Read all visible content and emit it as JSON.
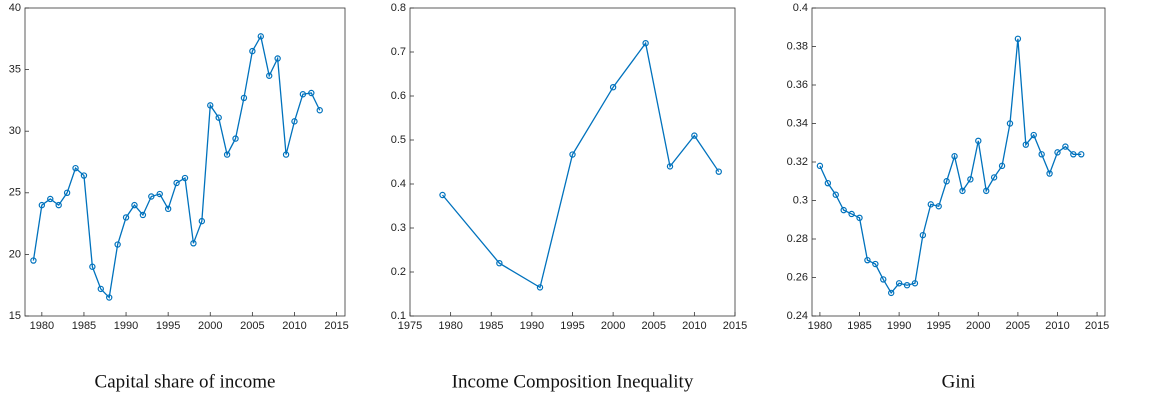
{
  "chart_data": [
    {
      "type": "line",
      "title": "Capital share of income",
      "color": "#0072bd",
      "x": [
        1979,
        1980,
        1981,
        1982,
        1983,
        1984,
        1985,
        1986,
        1987,
        1988,
        1989,
        1990,
        1991,
        1992,
        1993,
        1994,
        1995,
        1996,
        1997,
        1998,
        1999,
        2000,
        2001,
        2002,
        2003,
        2004,
        2005,
        2006,
        2007,
        2008,
        2009,
        2010,
        2011,
        2012,
        2013
      ],
      "values": [
        19.5,
        24.0,
        24.5,
        24.0,
        25.0,
        27.0,
        26.4,
        19.0,
        17.2,
        16.5,
        20.8,
        23.0,
        24.0,
        23.2,
        24.7,
        24.9,
        23.7,
        25.8,
        26.2,
        20.9,
        22.7,
        32.1,
        31.1,
        28.1,
        29.4,
        32.7,
        36.5,
        37.7,
        34.5,
        35.9,
        28.1,
        30.8,
        33.0,
        33.1,
        31.7
      ],
      "xlim": [
        1978,
        2016
      ],
      "ylim": [
        15,
        40
      ],
      "xticks": [
        1980,
        1985,
        1990,
        1995,
        2000,
        2005,
        2010,
        2015
      ],
      "yticks": [
        15,
        20,
        25,
        30,
        35,
        40
      ]
    },
    {
      "type": "line",
      "title": "Income Composition Inequality",
      "color": "#0072bd",
      "x": [
        1979,
        1986,
        1991,
        1995,
        2000,
        2004,
        2007,
        2010,
        2013
      ],
      "values": [
        0.375,
        0.22,
        0.165,
        0.467,
        0.62,
        0.72,
        0.44,
        0.51,
        0.428
      ],
      "xlim": [
        1975,
        2015
      ],
      "ylim": [
        0.1,
        0.8
      ],
      "xticks": [
        1975,
        1980,
        1985,
        1990,
        1995,
        2000,
        2005,
        2010,
        2015
      ],
      "yticks": [
        0.1,
        0.2,
        0.3,
        0.4,
        0.5,
        0.6,
        0.7,
        0.8
      ]
    },
    {
      "type": "line",
      "title": "Gini",
      "color": "#0072bd",
      "x": [
        1980,
        1981,
        1982,
        1983,
        1984,
        1985,
        1986,
        1987,
        1988,
        1989,
        1990,
        1991,
        1992,
        1993,
        1994,
        1995,
        1996,
        1997,
        1998,
        1999,
        2000,
        2001,
        2002,
        2003,
        2004,
        2005,
        2006,
        2007,
        2008,
        2009,
        2010,
        2011,
        2012,
        2013
      ],
      "values": [
        0.318,
        0.309,
        0.303,
        0.295,
        0.293,
        0.291,
        0.269,
        0.267,
        0.259,
        0.252,
        0.257,
        0.256,
        0.257,
        0.282,
        0.298,
        0.297,
        0.31,
        0.323,
        0.305,
        0.311,
        0.331,
        0.305,
        0.312,
        0.318,
        0.34,
        0.384,
        0.329,
        0.334,
        0.324,
        0.314,
        0.325,
        0.328,
        0.324,
        0.324
      ],
      "xlim": [
        1979,
        2016
      ],
      "ylim": [
        0.24,
        0.4
      ],
      "xticks": [
        1980,
        1985,
        1990,
        1995,
        2000,
        2005,
        2010,
        2015
      ],
      "yticks": [
        0.24,
        0.26,
        0.28,
        0.3,
        0.32,
        0.34,
        0.36,
        0.38,
        0.4
      ]
    }
  ]
}
